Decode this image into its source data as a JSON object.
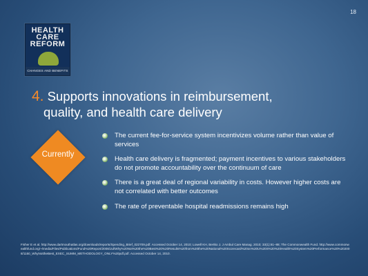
{
  "page_number": "18",
  "logo": {
    "line1": "HEALTH",
    "line2": "CARE",
    "line3": "REFORM",
    "subtitle": "CHANGES AND BENEFITS"
  },
  "title": {
    "number": "4.",
    "line1": "Supports innovations in reimbursement,",
    "line2": "quality, and health care delivery"
  },
  "label": "Currently",
  "colors": {
    "accent_orange": "#ef8a22",
    "background": "#3f6690",
    "bullet_green": "#7fb06a"
  },
  "bullets": [
    {
      "text": "The current fee-for-service system incentivizes volume rather than value of services"
    },
    {
      "text": "Health care delivery is fragmented; payment incentives  to various stakeholders do not promote accountability over the continuum of care"
    },
    {
      "text": "There is a great deal of regional variability in costs. However higher costs are not correlated with better outcomes"
    },
    {
      "text": "The rate of preventable hospital readmissions remains high"
    }
  ],
  "footnote": "Fisher E et al. http://www.dartmouthatlas.org/downloads/reports/Spending_Brief_022709.pdf. Accessed October 14, 2010; Lowell KH, Bertko J. J Ambul Care Manag. 2010; 33(1):81–88; The Commonwealth Fund. http://www.commonwealthfund.org/~/media/Files/Publications/Fund%20Report/2008/Jul/Why%20Not%20the%20Best%20%20Results%20from%20the%20National%20Scorecard%20on%20U%20S%20%20Health%20System%20Performance%20%202008/1150_WhyNottheBest_EXEC_SUMM_METHODOLOGY_ONLY%20pdf.pdf. Accessed October 14, 2010."
}
